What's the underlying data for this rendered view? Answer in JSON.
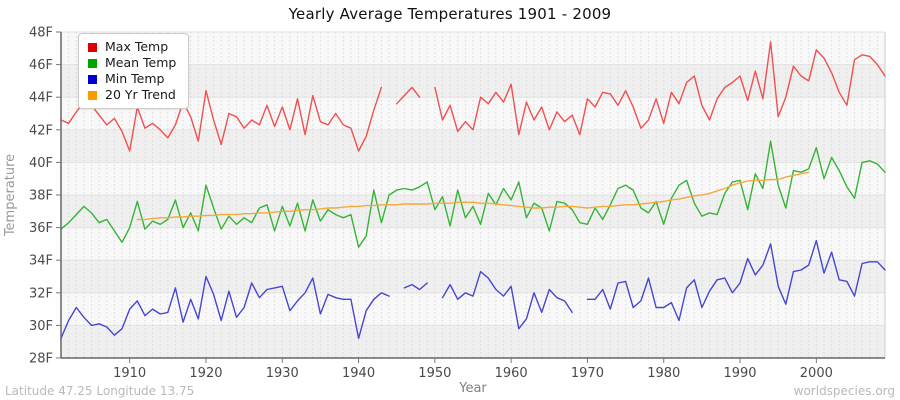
{
  "page": {
    "footer_left": "Latitude 47.25 Longitude 13.75",
    "footer_right": "worldspecies.org"
  },
  "chart_data": {
    "type": "line",
    "title": "Yearly Average Temperatures 1901 - 2009",
    "xlabel": "Year",
    "ylabel": "Temperature",
    "x_start": 1901,
    "x_end": 2009,
    "ylim": [
      28,
      48
    ],
    "grid": "vertical-dashed-per-year, horizontal-per-2F, alternating-bands",
    "legend_position": "top-left",
    "x_ticks": [
      1910,
      1920,
      1930,
      1940,
      1950,
      1960,
      1970,
      1980,
      1990,
      2000
    ],
    "y_ticks": [
      {
        "value": 28,
        "label": "28F"
      },
      {
        "value": 30,
        "label": "30F"
      },
      {
        "value": 32,
        "label": "32F"
      },
      {
        "value": 34,
        "label": "34F"
      },
      {
        "value": 36,
        "label": "36F"
      },
      {
        "value": 38,
        "label": "38F"
      },
      {
        "value": 40,
        "label": "40F"
      },
      {
        "value": 42,
        "label": "42F"
      },
      {
        "value": 44,
        "label": "44F"
      },
      {
        "value": 46,
        "label": "46F"
      },
      {
        "value": 48,
        "label": "48F"
      }
    ],
    "series": [
      {
        "name": "Max Temp",
        "color": "#f05050",
        "legend_color": "#dd0000",
        "values": [
          42.6,
          42.4,
          43.1,
          43.7,
          43.5,
          42.9,
          42.3,
          42.7,
          41.9,
          40.7,
          43.4,
          42.1,
          42.4,
          42.0,
          41.5,
          42.3,
          43.7,
          42.8,
          41.3,
          44.4,
          42.6,
          41.1,
          43.0,
          42.8,
          42.1,
          42.6,
          42.3,
          43.5,
          42.2,
          43.4,
          42.0,
          43.9,
          41.7,
          44.1,
          42.5,
          42.3,
          43.0,
          42.3,
          42.1,
          40.7,
          41.6,
          43.2,
          44.6,
          null,
          43.6,
          44.1,
          44.6,
          44.0,
          null,
          44.6,
          42.6,
          43.5,
          41.9,
          42.5,
          42.0,
          44.0,
          43.6,
          44.3,
          43.7,
          44.8,
          41.7,
          43.7,
          42.6,
          43.4,
          42.0,
          43.1,
          42.5,
          42.9,
          41.7,
          43.9,
          43.4,
          44.3,
          44.2,
          43.5,
          44.4,
          43.4,
          42.1,
          42.6,
          43.9,
          42.4,
          44.3,
          43.6,
          44.9,
          45.3,
          43.5,
          42.6,
          43.9,
          44.6,
          44.9,
          45.3,
          43.8,
          45.6,
          43.9,
          47.4,
          42.8,
          44.0,
          45.9,
          45.3,
          45.0,
          46.9,
          46.4,
          45.5,
          44.3,
          43.5,
          46.3,
          46.6,
          46.5,
          46.0,
          45.3
        ]
      },
      {
        "name": "Mean Temp",
        "color": "#35b435",
        "legend_color": "#00a400",
        "values": [
          35.9,
          36.3,
          36.8,
          37.3,
          36.9,
          36.3,
          36.5,
          35.8,
          35.1,
          36.0,
          37.6,
          35.9,
          36.4,
          36.2,
          36.5,
          37.7,
          36.0,
          36.9,
          35.8,
          38.6,
          37.2,
          35.9,
          36.7,
          36.2,
          36.6,
          36.3,
          37.2,
          37.4,
          35.8,
          37.3,
          36.1,
          37.5,
          35.8,
          37.7,
          36.4,
          37.1,
          36.8,
          36.6,
          36.8,
          34.8,
          35.5,
          38.3,
          36.3,
          38.0,
          38.3,
          38.4,
          38.3,
          38.5,
          38.8,
          37.1,
          37.9,
          36.1,
          38.3,
          36.6,
          37.3,
          36.2,
          38.1,
          37.4,
          38.4,
          37.7,
          38.8,
          36.6,
          37.5,
          37.2,
          35.8,
          37.6,
          37.5,
          37.1,
          36.3,
          36.2,
          37.2,
          36.5,
          37.4,
          38.4,
          38.6,
          38.3,
          37.2,
          36.9,
          37.6,
          36.2,
          37.8,
          38.6,
          38.9,
          37.5,
          36.7,
          36.9,
          36.8,
          38.1,
          38.8,
          38.9,
          37.1,
          39.3,
          38.4,
          41.3,
          38.6,
          37.2,
          39.5,
          39.4,
          39.6,
          40.9,
          39.0,
          40.3,
          39.5,
          38.5,
          37.8,
          40.0,
          40.1,
          39.9,
          39.4
        ]
      },
      {
        "name": "Min Temp",
        "color": "#4646d2",
        "legend_color": "#0000cc",
        "values": [
          29.2,
          30.3,
          31.1,
          30.5,
          30.0,
          30.1,
          29.9,
          29.4,
          29.8,
          31.0,
          31.5,
          30.6,
          31.0,
          30.7,
          30.8,
          32.3,
          30.2,
          31.6,
          30.4,
          33.0,
          31.9,
          30.3,
          32.1,
          30.5,
          31.1,
          32.6,
          31.7,
          32.2,
          32.3,
          32.4,
          30.9,
          31.5,
          32.0,
          32.9,
          30.7,
          31.9,
          31.7,
          31.6,
          31.6,
          29.2,
          30.9,
          31.6,
          32.0,
          31.8,
          null,
          32.3,
          32.5,
          32.2,
          32.6,
          null,
          31.7,
          32.5,
          31.6,
          32.0,
          31.8,
          33.3,
          32.9,
          32.2,
          31.8,
          32.4,
          29.8,
          30.4,
          32.0,
          30.8,
          32.2,
          31.7,
          31.5,
          30.8,
          null,
          31.6,
          31.6,
          32.2,
          31.0,
          32.6,
          32.7,
          31.1,
          31.5,
          32.9,
          31.1,
          31.1,
          31.4,
          30.3,
          32.3,
          32.8,
          31.1,
          32.1,
          32.8,
          32.9,
          32.0,
          32.6,
          34.1,
          33.1,
          33.7,
          35.0,
          32.4,
          31.3,
          33.3,
          33.4,
          33.7,
          35.2,
          33.2,
          34.5,
          32.8,
          32.7,
          31.8,
          33.8,
          33.9,
          33.9,
          33.4
        ]
      },
      {
        "name": "20 Yr Trend",
        "color": "#f7a83b",
        "legend_color": "#ff9900",
        "values": [
          null,
          null,
          null,
          null,
          null,
          null,
          null,
          null,
          null,
          null,
          36.5,
          36.5,
          36.55,
          36.6,
          36.6,
          36.65,
          36.65,
          36.7,
          36.7,
          36.75,
          36.75,
          36.8,
          36.8,
          36.8,
          36.85,
          36.85,
          36.9,
          36.9,
          36.95,
          37.0,
          37.0,
          37.05,
          37.1,
          37.1,
          37.15,
          37.2,
          37.2,
          37.25,
          37.3,
          37.3,
          37.35,
          37.35,
          37.4,
          37.4,
          37.4,
          37.45,
          37.45,
          37.45,
          37.45,
          37.5,
          37.5,
          37.5,
          37.55,
          37.55,
          37.55,
          37.5,
          37.5,
          37.45,
          37.4,
          37.35,
          37.3,
          37.25,
          37.2,
          37.2,
          37.25,
          37.25,
          37.3,
          37.3,
          37.25,
          37.2,
          37.25,
          37.3,
          37.3,
          37.35,
          37.4,
          37.4,
          37.45,
          37.5,
          37.55,
          37.6,
          37.7,
          37.75,
          37.85,
          37.95,
          38.0,
          38.1,
          38.25,
          38.4,
          38.6,
          38.75,
          38.85,
          38.9,
          38.9,
          38.95,
          38.95,
          39.1,
          39.2,
          39.3,
          39.4,
          null,
          null,
          null,
          null,
          null,
          null,
          null,
          null,
          null,
          null
        ]
      }
    ]
  }
}
